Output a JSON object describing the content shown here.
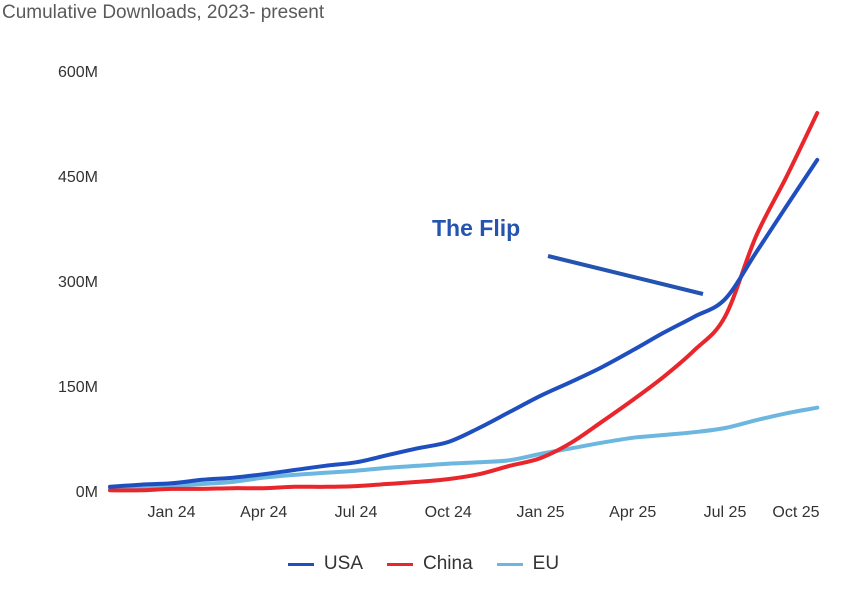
{
  "chart_data": {
    "type": "line",
    "title": "Cumulative Downloads, 2023- present",
    "xlabel": "",
    "ylabel": "",
    "x": [
      "Nov 23",
      "Dec 23",
      "Jan 24",
      "Feb 24",
      "Mar 24",
      "Apr 24",
      "May 24",
      "Jun 24",
      "Jul 24",
      "Aug 24",
      "Sep 24",
      "Oct 24",
      "Nov 24",
      "Dec 24",
      "Jan 25",
      "Feb 25",
      "Mar 25",
      "Apr 25",
      "May 25",
      "Jun 25",
      "Jul 25",
      "Aug 25",
      "Sep 25",
      "Oct 25"
    ],
    "x_ticks": [
      "Jan 24",
      "Apr 24",
      "Jul 24",
      "Oct 24",
      "Jan 25",
      "Apr 25",
      "Jul 25",
      "Oct 25"
    ],
    "y_ticks": [
      "0M",
      "150M",
      "300M",
      "450M",
      "600M"
    ],
    "ylim": [
      0,
      600
    ],
    "y_unit": "M",
    "grid": false,
    "legend_position": "bottom",
    "series": [
      {
        "name": "USA",
        "color": "#1f4fbf",
        "values": [
          6,
          9,
          11,
          16,
          19,
          24,
          30,
          36,
          41,
          51,
          61,
          70,
          90,
          113,
          136,
          156,
          177,
          201,
          226,
          249,
          274,
          340,
          407,
          473
        ]
      },
      {
        "name": "China",
        "color": "#e8262b",
        "values": [
          1,
          1,
          3,
          3,
          4,
          4,
          6,
          6,
          7,
          10,
          13,
          17,
          24,
          36,
          47,
          69,
          99,
          130,
          163,
          201,
          249,
          363,
          449,
          540
        ]
      },
      {
        "name": "EU",
        "color": "#6bb7e0",
        "values": [
          3,
          4,
          7,
          10,
          13,
          19,
          23,
          26,
          29,
          33,
          36,
          39,
          41,
          44,
          53,
          61,
          69,
          76,
          80,
          84,
          90,
          101,
          111,
          119
        ]
      }
    ],
    "annotations": [
      {
        "text": "The Flip",
        "color": "#2453b0",
        "points_to": "Jul 25"
      }
    ]
  }
}
